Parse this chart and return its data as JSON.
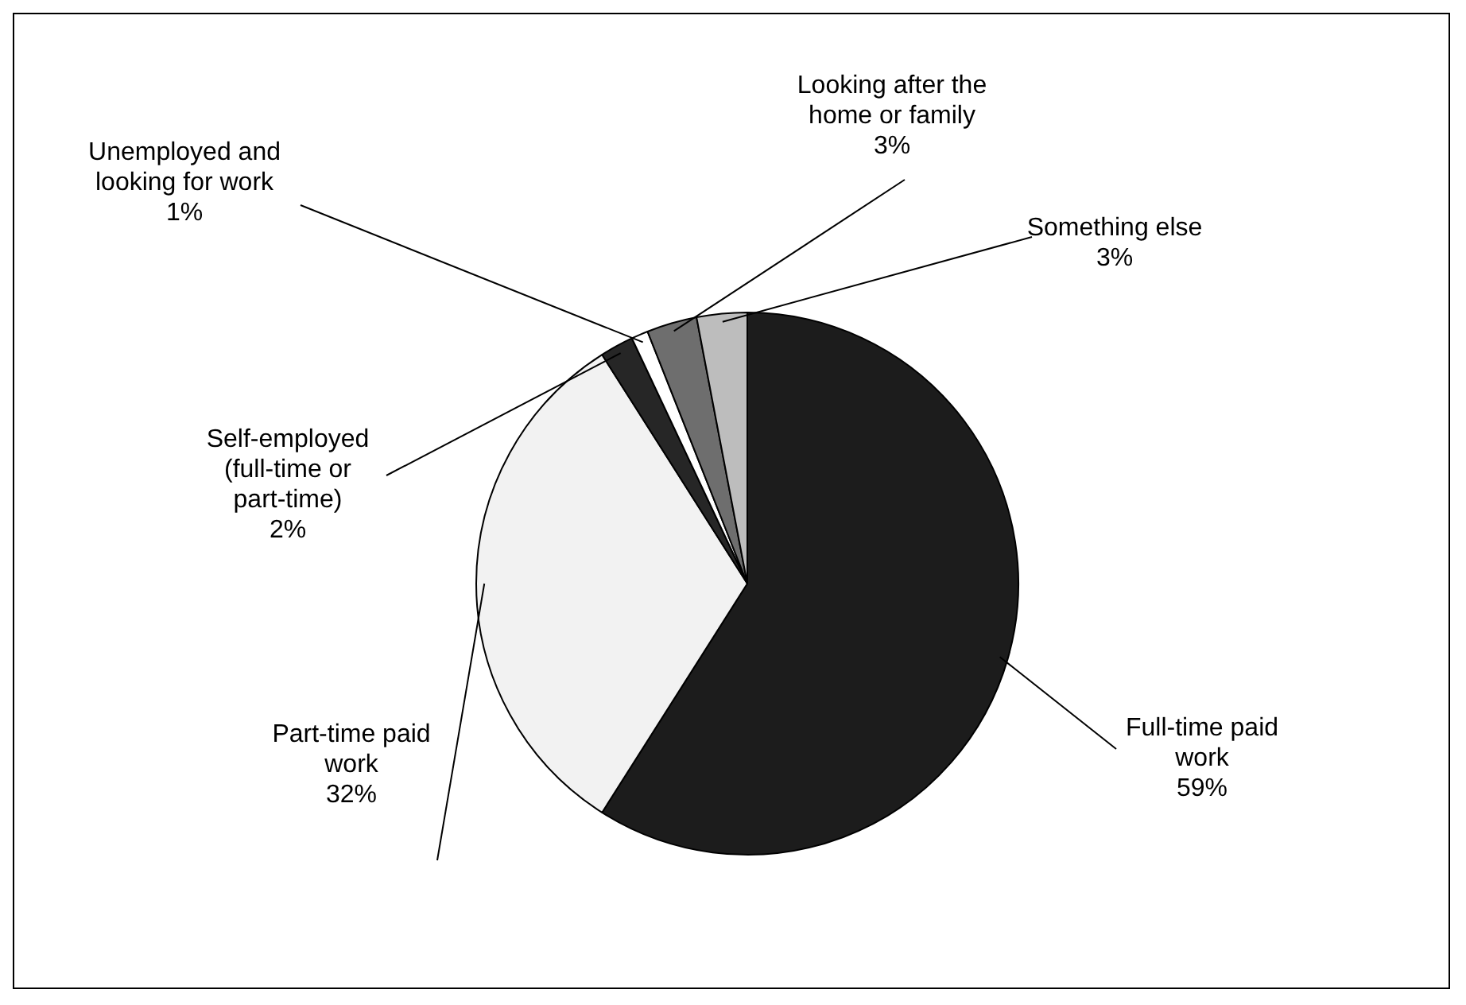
{
  "chart_data": {
    "type": "pie",
    "categories": [
      "Full-time paid work",
      "Part-time paid work",
      "Self-employed (full-time or part-time)",
      "Unemployed and looking for work",
      "Looking after the home or family",
      "Something else"
    ],
    "values": [
      59,
      32,
      2,
      1,
      3,
      3
    ],
    "colors": [
      "#1c1c1c",
      "#f2f2f2",
      "#262626",
      "#ffffff",
      "#6e6e6e",
      "#bdbdbd"
    ],
    "value_labels": [
      "59%",
      "32%",
      "2%",
      "1%",
      "3%",
      "3%"
    ],
    "legend": false
  }
}
